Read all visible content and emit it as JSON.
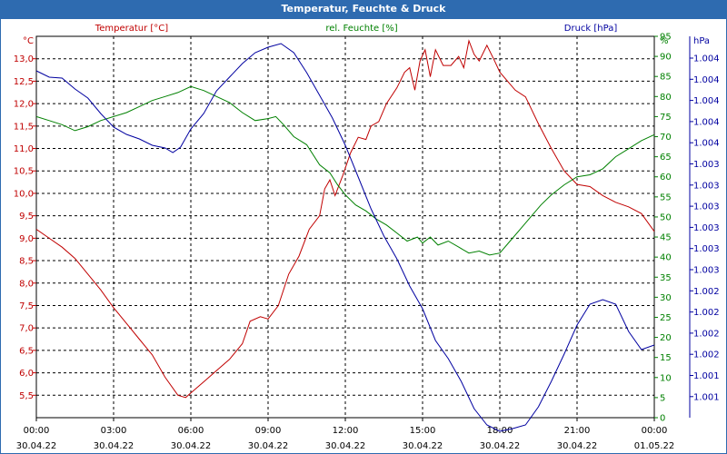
{
  "window": {
    "title": "Temperatur, Feuchte & Druck"
  },
  "chart_data": {
    "type": "line",
    "title": "Temperatur, Feuchte & Druck",
    "grid": true,
    "x_ticks": [
      {
        "h": 0,
        "time": "00:00",
        "date": "30.04.22"
      },
      {
        "h": 3,
        "time": "03:00",
        "date": "30.04.22"
      },
      {
        "h": 6,
        "time": "06:00",
        "date": "30.04.22"
      },
      {
        "h": 9,
        "time": "09:00",
        "date": "30.04.22"
      },
      {
        "h": 12,
        "time": "12:00",
        "date": "30.04.22"
      },
      {
        "h": 15,
        "time": "15:00",
        "date": "30.04.22"
      },
      {
        "h": 18,
        "time": "18:00",
        "date": "30.04.22"
      },
      {
        "h": 21,
        "time": "21:00",
        "date": "30.04.22"
      },
      {
        "h": 24,
        "time": "00:00",
        "date": "01.05.22"
      }
    ],
    "axes": {
      "left": {
        "label": "Temperatur [°C]",
        "unit": "°C",
        "color": "#c00000",
        "min": 5,
        "max": 13.5,
        "ticks": [
          "5,5",
          "6,0",
          "6,5",
          "7,0",
          "7,5",
          "8,0",
          "8,5",
          "9,0",
          "9,5",
          "10,0",
          "10,5",
          "11,0",
          "11,5",
          "12,0",
          "12,5",
          "13,0"
        ]
      },
      "right1": {
        "label": "rel. Feuchte [%]",
        "unit": "%",
        "color": "#008000",
        "min": 0,
        "max": 95,
        "ticks": [
          "0",
          "5",
          "10",
          "15",
          "20",
          "25",
          "30",
          "35",
          "40",
          "45",
          "50",
          "55",
          "60",
          "65",
          "70",
          "75",
          "80",
          "85",
          "90",
          "95"
        ]
      },
      "right2": {
        "label": "Druck [hPa]",
        "unit": "hPa",
        "color": "#0000a0",
        "ticks": [
          "1.004",
          "1.004",
          "1.004",
          "1.004",
          "1.004",
          "1.003",
          "1.003",
          "1.003",
          "1.003",
          "1.003",
          "1.003",
          "1.002",
          "1.002",
          "1.002",
          "1.002",
          "1.001",
          "1.001"
        ]
      }
    },
    "series": [
      {
        "name": "Temperatur [°C]",
        "axis": "left",
        "color": "#c00000",
        "points": [
          [
            0,
            9.2
          ],
          [
            0.5,
            9.0
          ],
          [
            1,
            8.8
          ],
          [
            1.5,
            8.55
          ],
          [
            2,
            8.2
          ],
          [
            2.5,
            7.85
          ],
          [
            3,
            7.45
          ],
          [
            3.5,
            7.1
          ],
          [
            4,
            6.75
          ],
          [
            4.5,
            6.4
          ],
          [
            5,
            5.9
          ],
          [
            5.5,
            5.5
          ],
          [
            5.8,
            5.45
          ],
          [
            6,
            5.55
          ],
          [
            6.5,
            5.8
          ],
          [
            7,
            6.05
          ],
          [
            7.5,
            6.3
          ],
          [
            8,
            6.65
          ],
          [
            8.3,
            7.15
          ],
          [
            8.7,
            7.25
          ],
          [
            9,
            7.2
          ],
          [
            9.4,
            7.5
          ],
          [
            9.8,
            8.2
          ],
          [
            10.2,
            8.6
          ],
          [
            10.6,
            9.2
          ],
          [
            11,
            9.5
          ],
          [
            11.2,
            10.1
          ],
          [
            11.4,
            10.3
          ],
          [
            11.6,
            9.95
          ],
          [
            11.9,
            10.4
          ],
          [
            12.2,
            10.9
          ],
          [
            12.5,
            11.25
          ],
          [
            12.8,
            11.2
          ],
          [
            13,
            11.5
          ],
          [
            13.3,
            11.6
          ],
          [
            13.6,
            12.0
          ],
          [
            14,
            12.35
          ],
          [
            14.3,
            12.7
          ],
          [
            14.5,
            12.8
          ],
          [
            14.7,
            12.3
          ],
          [
            14.9,
            12.95
          ],
          [
            15.1,
            13.2
          ],
          [
            15.3,
            12.6
          ],
          [
            15.5,
            13.2
          ],
          [
            15.8,
            12.85
          ],
          [
            16.1,
            12.85
          ],
          [
            16.4,
            13.05
          ],
          [
            16.6,
            12.8
          ],
          [
            16.8,
            13.4
          ],
          [
            17,
            13.1
          ],
          [
            17.2,
            12.95
          ],
          [
            17.5,
            13.3
          ],
          [
            17.8,
            12.95
          ],
          [
            18,
            12.7
          ],
          [
            18.3,
            12.5
          ],
          [
            18.6,
            12.3
          ],
          [
            19,
            12.15
          ],
          [
            19.5,
            11.55
          ],
          [
            20,
            11.0
          ],
          [
            20.5,
            10.5
          ],
          [
            21,
            10.2
          ],
          [
            21.5,
            10.15
          ],
          [
            22,
            9.95
          ],
          [
            22.5,
            9.8
          ],
          [
            23,
            9.7
          ],
          [
            23.5,
            9.55
          ],
          [
            24,
            9.15
          ]
        ]
      },
      {
        "name": "rel. Feuchte [%]",
        "axis": "right1",
        "color": "#008000",
        "points": [
          [
            0,
            75
          ],
          [
            0.5,
            74
          ],
          [
            1,
            73
          ],
          [
            1.5,
            71.5
          ],
          [
            2,
            72.5
          ],
          [
            2.5,
            74
          ],
          [
            3,
            75
          ],
          [
            3.5,
            76
          ],
          [
            4,
            77.5
          ],
          [
            4.5,
            79
          ],
          [
            5,
            80
          ],
          [
            5.5,
            81
          ],
          [
            6,
            82.5
          ],
          [
            6.5,
            81.5
          ],
          [
            7,
            80
          ],
          [
            7.5,
            78.5
          ],
          [
            8,
            76
          ],
          [
            8.5,
            74
          ],
          [
            9,
            74.5
          ],
          [
            9.3,
            75
          ],
          [
            9.6,
            73
          ],
          [
            10,
            70
          ],
          [
            10.5,
            68
          ],
          [
            11,
            63
          ],
          [
            11.4,
            61
          ],
          [
            11.7,
            58
          ],
          [
            12,
            55.5
          ],
          [
            12.4,
            53
          ],
          [
            12.8,
            51.5
          ],
          [
            13.2,
            49.5
          ],
          [
            13.6,
            48
          ],
          [
            14,
            46
          ],
          [
            14.4,
            44
          ],
          [
            14.8,
            45
          ],
          [
            15,
            43.5
          ],
          [
            15.3,
            45
          ],
          [
            15.6,
            43
          ],
          [
            16,
            44
          ],
          [
            16.4,
            42.5
          ],
          [
            16.8,
            41
          ],
          [
            17.2,
            41.5
          ],
          [
            17.6,
            40.5
          ],
          [
            18,
            41
          ],
          [
            18.4,
            44
          ],
          [
            18.8,
            47
          ],
          [
            19.2,
            50
          ],
          [
            19.6,
            53
          ],
          [
            20,
            55.5
          ],
          [
            20.5,
            58
          ],
          [
            21,
            60
          ],
          [
            21.5,
            60.5
          ],
          [
            22,
            62
          ],
          [
            22.5,
            65
          ],
          [
            23,
            67
          ],
          [
            23.5,
            69
          ],
          [
            24,
            70.5
          ]
        ]
      },
      {
        "name": "Druck [hPa]",
        "axis": "right2",
        "color": "#0000a0",
        "points": [
          [
            0,
            38
          ],
          [
            0.5,
            45
          ],
          [
            1,
            46
          ],
          [
            1.5,
            58
          ],
          [
            2,
            68
          ],
          [
            2.5,
            85
          ],
          [
            3,
            100
          ],
          [
            3.5,
            108
          ],
          [
            4,
            113
          ],
          [
            4.5,
            120
          ],
          [
            5,
            123
          ],
          [
            5.3,
            128
          ],
          [
            5.6,
            122
          ],
          [
            6,
            102
          ],
          [
            6.5,
            85
          ],
          [
            7,
            60
          ],
          [
            7.5,
            45
          ],
          [
            8,
            30
          ],
          [
            8.5,
            18
          ],
          [
            9,
            12
          ],
          [
            9.5,
            8
          ],
          [
            10,
            18
          ],
          [
            10.5,
            40
          ],
          [
            11,
            65
          ],
          [
            11.5,
            90
          ],
          [
            12,
            120
          ],
          [
            12.5,
            155
          ],
          [
            13,
            190
          ],
          [
            13.5,
            220
          ],
          [
            14,
            245
          ],
          [
            14.5,
            275
          ],
          [
            15,
            300
          ],
          [
            15.5,
            335
          ],
          [
            16,
            355
          ],
          [
            16.5,
            380
          ],
          [
            17,
            410
          ],
          [
            17.5,
            428
          ],
          [
            18,
            435
          ],
          [
            18.5,
            432
          ],
          [
            19,
            428
          ],
          [
            19.5,
            408
          ],
          [
            20,
            380
          ],
          [
            20.5,
            350
          ],
          [
            21,
            318
          ],
          [
            21.5,
            295
          ],
          [
            22,
            290
          ],
          [
            22.5,
            295
          ],
          [
            23,
            325
          ],
          [
            23.5,
            345
          ],
          [
            24,
            340
          ]
        ]
      }
    ]
  }
}
